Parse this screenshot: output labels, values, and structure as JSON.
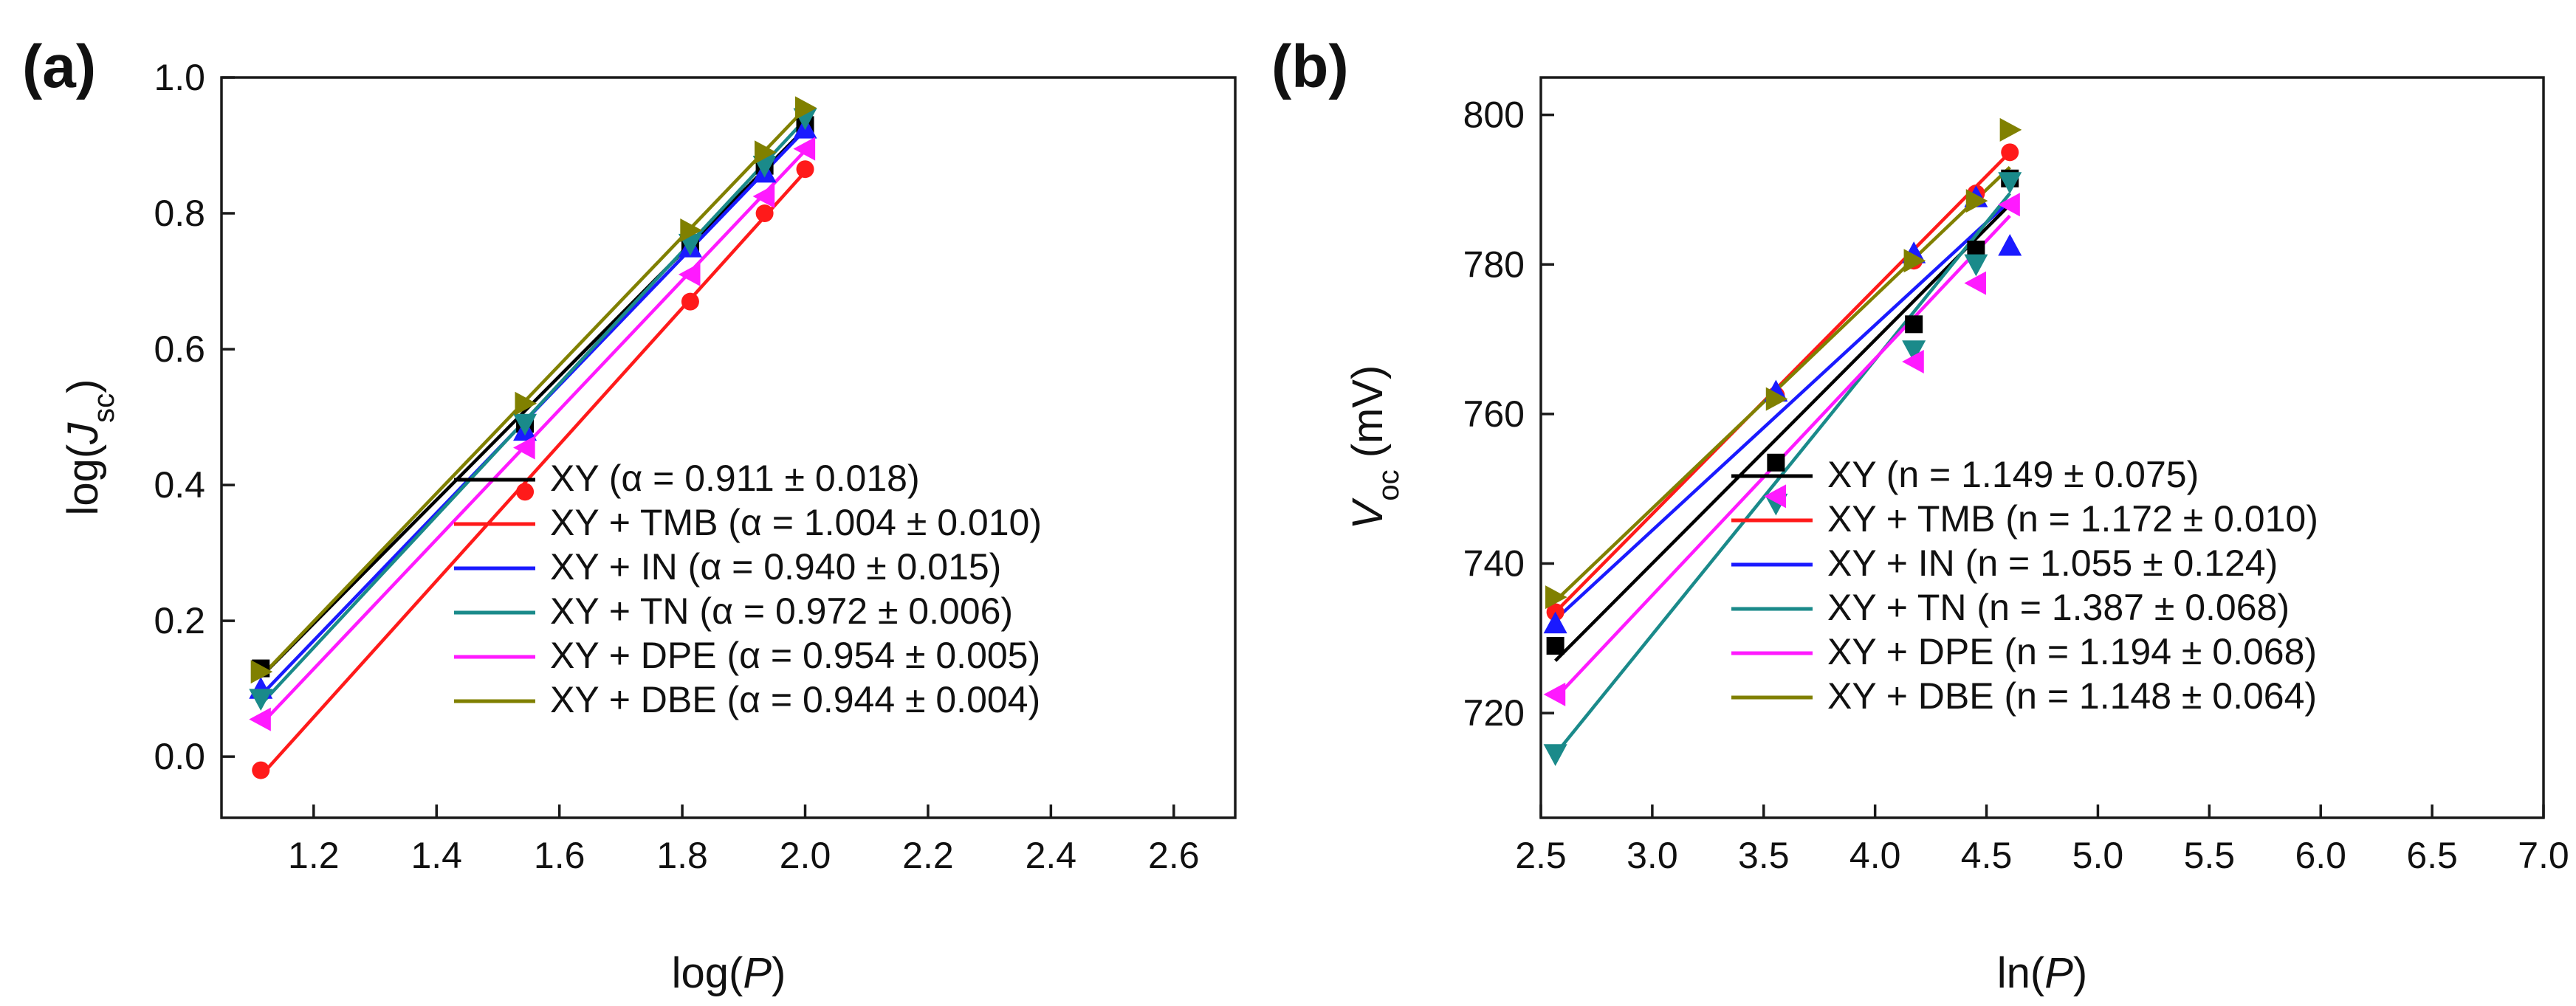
{
  "chart_data": [
    {
      "id": "a",
      "panel_label": "(a)",
      "type": "scatter",
      "title": "",
      "xlabel": "log(P)",
      "ylabel": "log(Jsc)",
      "xlabel_parts": {
        "pre": "log(",
        "italic": "P",
        "post": ")"
      },
      "ylabel_parts": {
        "pre": "log(",
        "italic": "J",
        "sub": "sc",
        "post": ")"
      },
      "xlim": [
        1.05,
        2.7
      ],
      "ylim": [
        -0.09,
        1.0
      ],
      "xticks": [
        1.2,
        1.4,
        1.6,
        1.8,
        2.0,
        2.2,
        2.4,
        2.6
      ],
      "yticks": [
        0.0,
        0.2,
        0.4,
        0.6,
        0.8,
        1.0
      ],
      "xtick_labels": [
        "1.2",
        "1.4",
        "1.6",
        "1.8",
        "2.0",
        "2.2",
        "2.4",
        "2.6"
      ],
      "ytick_labels": [
        "0.0",
        "0.2",
        "0.4",
        "0.6",
        "0.8",
        "1.0"
      ],
      "legend_position": "bottom-right",
      "grid": false,
      "series": [
        {
          "name": "XY",
          "legend": "XY (α = 0.911 ± 0.018)",
          "color": "#000000",
          "marker": "square",
          "x": [
            1.114,
            1.544,
            1.813,
            1.934,
            2.0
          ],
          "y": [
            0.13,
            0.49,
            0.75,
            0.87,
            0.93
          ],
          "fit": {
            "slope": 0.911,
            "x": [
              1.114,
              2.0
            ]
          }
        },
        {
          "name": "XY + TMB",
          "legend": "XY + TMB (α = 1.004 ± 0.010)",
          "color": "#ff1a1a",
          "marker": "circle",
          "x": [
            1.114,
            1.544,
            1.813,
            1.934,
            2.0
          ],
          "y": [
            -0.02,
            0.39,
            0.67,
            0.8,
            0.865
          ],
          "fit": {
            "slope": 1.004,
            "x": [
              1.114,
              2.0
            ]
          }
        },
        {
          "name": "XY + IN",
          "legend": "XY + IN (α = 0.940 ± 0.015)",
          "color": "#1a1aff",
          "marker": "triangle-up",
          "x": [
            1.114,
            1.544,
            1.813,
            1.934,
            2.0
          ],
          "y": [
            0.1,
            0.48,
            0.75,
            0.86,
            0.925
          ],
          "fit": {
            "slope": 0.94,
            "x": [
              1.114,
              2.0
            ]
          }
        },
        {
          "name": "XY + TN",
          "legend": "XY + TN (α = 0.972 ± 0.006)",
          "color": "#1a8a8a",
          "marker": "triangle-down",
          "x": [
            1.114,
            1.544,
            1.813,
            1.934,
            2.0
          ],
          "y": [
            0.085,
            0.49,
            0.755,
            0.87,
            0.94
          ],
          "fit": {
            "slope": 0.972,
            "x": [
              1.114,
              2.0
            ]
          }
        },
        {
          "name": "XY + DPE",
          "legend": "XY + DPE (α = 0.954 ± 0.005)",
          "color": "#ff1aff",
          "marker": "triangle-left",
          "x": [
            1.114,
            1.544,
            1.813,
            1.934,
            2.0
          ],
          "y": [
            0.055,
            0.455,
            0.71,
            0.825,
            0.895
          ],
          "fit": {
            "slope": 0.954,
            "x": [
              1.114,
              2.0
            ]
          }
        },
        {
          "name": "XY + DBE",
          "legend": "XY + DBE (α = 0.944 ± 0.004)",
          "color": "#808000",
          "marker": "triangle-right",
          "x": [
            1.114,
            1.544,
            1.813,
            1.934,
            2.0
          ],
          "y": [
            0.125,
            0.52,
            0.775,
            0.89,
            0.955
          ],
          "fit": {
            "slope": 0.944,
            "x": [
              1.114,
              2.0
            ]
          }
        }
      ]
    },
    {
      "id": "b",
      "panel_label": "(b)",
      "type": "scatter",
      "title": "",
      "xlabel": "ln(P)",
      "ylabel": "Voc (mV)",
      "xlabel_parts": {
        "pre": "ln(",
        "italic": "P",
        "post": ")"
      },
      "ylabel_parts": {
        "pre": "",
        "italic": "V",
        "sub": "oc",
        "post": " (mV)"
      },
      "xlim": [
        2.5,
        7.0
      ],
      "ylim": [
        706,
        805
      ],
      "xticks": [
        2.5,
        3.0,
        3.5,
        4.0,
        4.5,
        5.0,
        5.5,
        6.0,
        6.5,
        7.0
      ],
      "yticks": [
        720,
        740,
        760,
        780,
        800
      ],
      "xtick_labels": [
        "2.5",
        "3.0",
        "3.5",
        "4.0",
        "4.5",
        "5.0",
        "5.5",
        "6.0",
        "6.5",
        "7.0"
      ],
      "ytick_labels": [
        "720",
        "740",
        "760",
        "780",
        "800"
      ],
      "legend_position": "bottom-right",
      "grid": false,
      "series": [
        {
          "name": "XY",
          "legend": "XY (n = 1.149 ± 0.075)",
          "color": "#000000",
          "marker": "square",
          "x": [
            2.565,
            3.555,
            4.174,
            4.453,
            4.605
          ],
          "y": [
            729,
            753.5,
            772,
            782,
            791.5
          ],
          "fit": {
            "y_start": 727,
            "y_end": 788,
            "x": [
              2.565,
              4.605
            ]
          }
        },
        {
          "name": "XY + TMB",
          "legend": "XY + TMB (n = 1.172 ± 0.010)",
          "color": "#ff1a1a",
          "marker": "circle",
          "x": [
            2.565,
            3.555,
            4.174,
            4.453,
            4.605
          ],
          "y": [
            733.5,
            762.5,
            780.5,
            789.5,
            795
          ],
          "fit": {
            "y_start": 733.5,
            "y_end": 795,
            "x": [
              2.565,
              4.605
            ]
          }
        },
        {
          "name": "XY + IN",
          "legend": "XY + IN (n = 1.055 ± 0.124)",
          "color": "#1a1aff",
          "marker": "triangle-up",
          "x": [
            2.565,
            3.555,
            4.174,
            4.453,
            4.605
          ],
          "y": [
            732,
            763,
            781.5,
            789,
            782.5
          ],
          "fit": {
            "y_start": 732.5,
            "y_end": 788.5,
            "x": [
              2.565,
              4.605
            ]
          }
        },
        {
          "name": "XY + TN",
          "legend": "XY + TN (n = 1.387 ± 0.068)",
          "color": "#1a8a8a",
          "marker": "triangle-down",
          "x": [
            2.565,
            3.555,
            4.174,
            4.453,
            4.605
          ],
          "y": [
            714.5,
            748,
            768.5,
            780,
            791
          ],
          "fit": {
            "y_start": 714.5,
            "y_end": 789.5,
            "x": [
              2.565,
              4.605
            ]
          }
        },
        {
          "name": "XY + DPE",
          "legend": "XY + DPE (n = 1.194 ± 0.068)",
          "color": "#ff1aff",
          "marker": "triangle-left",
          "x": [
            2.565,
            3.555,
            4.174,
            4.453,
            4.605
          ],
          "y": [
            722.5,
            749,
            767,
            777.5,
            788
          ],
          "fit": {
            "y_start": 722,
            "y_end": 786.5,
            "x": [
              2.565,
              4.605
            ]
          }
        },
        {
          "name": "XY + DBE",
          "legend": "XY + DBE (n = 1.148 ± 0.064)",
          "color": "#808000",
          "marker": "triangle-right",
          "x": [
            2.565,
            3.555,
            4.174,
            4.453,
            4.605
          ],
          "y": [
            735.5,
            762,
            780.5,
            788.5,
            798
          ],
          "fit": {
            "y_start": 735,
            "y_end": 793,
            "x": [
              2.565,
              4.605
            ]
          }
        }
      ]
    }
  ]
}
